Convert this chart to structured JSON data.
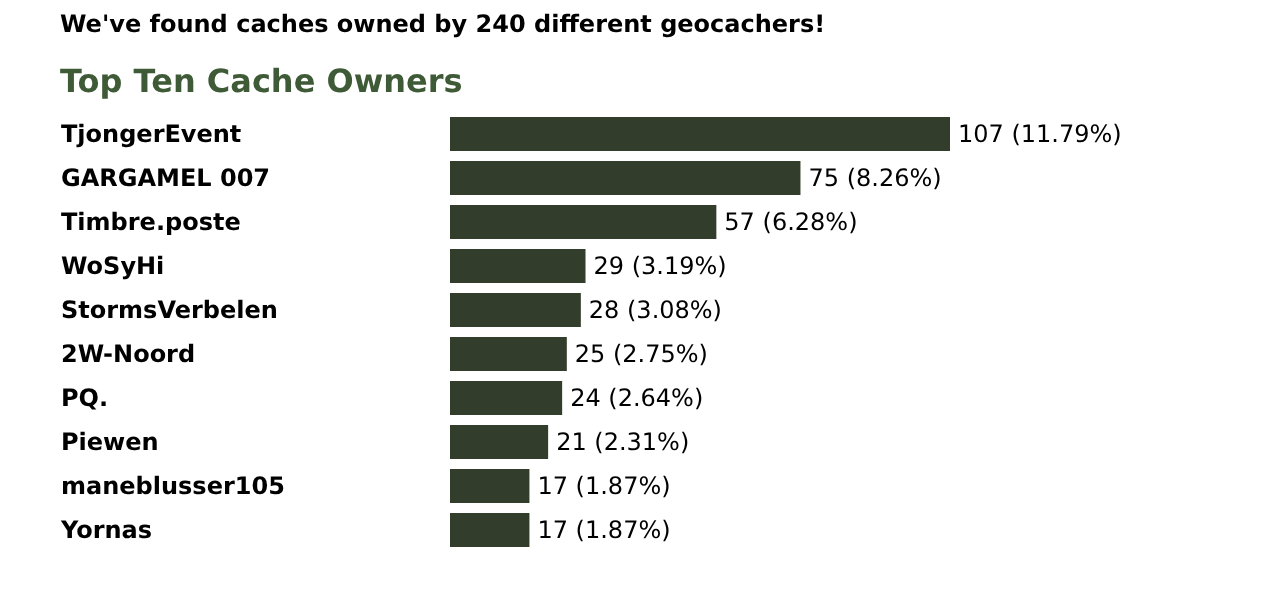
{
  "chart_data": {
    "type": "bar",
    "orientation": "horizontal",
    "title": "We've found caches owned by 240 different geocachers!",
    "subtitle": "Top Ten Cache Owners",
    "categories": [
      "TjongerEvent",
      "GARGAMEL 007",
      "Timbre.poste",
      "WoSyHi",
      "StormsVerbelen",
      "2W-Noord",
      "PQ.",
      "Piewen",
      "maneblusser105",
      "Yornas"
    ],
    "values": [
      107,
      75,
      57,
      29,
      28,
      25,
      24,
      21,
      17,
      17
    ],
    "value_labels": [
      "107 (11.79%)",
      "75 (8.26%)",
      "57 (6.28%)",
      "29 (3.19%)",
      "28 (3.08%)",
      "25 (2.75%)",
      "24 (2.64%)",
      "21 (2.31%)",
      "17 (1.87%)",
      "17 (1.87%)"
    ],
    "color": "#333d2b"
  }
}
